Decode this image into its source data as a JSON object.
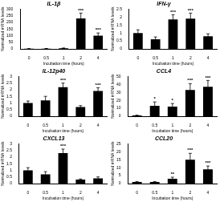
{
  "chart_data": [
    {
      "type": "bar",
      "title": "IL-1β",
      "x_label": "Incubation time (hours)",
      "y_label": "Normalized mRNA levels",
      "categories": [
        "0",
        "0.5",
        "1",
        "2",
        "4"
      ],
      "values": [
        1,
        2,
        5,
        230,
        100
      ],
      "errors": [
        0.5,
        1,
        2,
        40,
        20
      ],
      "significance": [
        null,
        null,
        null,
        "***",
        "***"
      ],
      "color": "#000000",
      "ylim": [
        0,
        300
      ],
      "yticks": [
        0,
        50,
        100,
        150,
        200,
        250,
        300
      ],
      "grid": false
    },
    {
      "type": "bar",
      "title": "IFN-γ",
      "x_label": "Incubation time (hours)",
      "y_label": "Normalized mRNA levels",
      "categories": [
        "0",
        "0.5",
        "1",
        "2",
        "4"
      ],
      "values": [
        1,
        0.6,
        1.85,
        1.9,
        0.8
      ],
      "errors": [
        0.2,
        0.15,
        0.3,
        0.35,
        0.15
      ],
      "significance": [
        null,
        null,
        "***",
        "***",
        null
      ],
      "color": "#000000",
      "ylim": [
        0,
        2.5
      ],
      "yticks": [
        0,
        0.5,
        1,
        1.5,
        2,
        2.5
      ],
      "grid": false
    },
    {
      "type": "bar",
      "title": "IL-12p40",
      "x_label": "Incubation time (hours)",
      "y_label": "Normalized mRNA levels",
      "categories": [
        "0",
        "0.5",
        "1",
        "2",
        "4"
      ],
      "values": [
        1,
        1.2,
        2.2,
        0.7,
        1.9
      ],
      "errors": [
        0.15,
        0.3,
        0.3,
        0.1,
        0.25
      ],
      "significance": [
        null,
        null,
        "***",
        null,
        "***"
      ],
      "color": "#000000",
      "ylim": [
        0,
        3
      ],
      "yticks": [
        0,
        0.5,
        1,
        1.5,
        2,
        2.5,
        3
      ],
      "grid": false
    },
    {
      "type": "bar",
      "title": "CCL4",
      "x_label": "Incubation time (hours)",
      "y_label": "Normalized mRNA levels",
      "categories": [
        "0",
        "0.5",
        "1",
        "2",
        "4"
      ],
      "values": [
        1,
        13,
        12,
        33,
        37
      ],
      "errors": [
        0.3,
        5,
        4,
        8,
        8
      ],
      "significance": [
        null,
        "*",
        "*",
        "***",
        "***"
      ],
      "color": "#000000",
      "ylim": [
        0,
        50
      ],
      "yticks": [
        0,
        10,
        20,
        30,
        40,
        50
      ],
      "grid": false
    },
    {
      "type": "bar",
      "title": "CXCL13",
      "x_label": "Incubation time (hours)",
      "y_label": "Normalized mRNA levels",
      "categories": [
        "0",
        "0.5",
        "1",
        "2",
        "4"
      ],
      "values": [
        1,
        0.7,
        2.3,
        0.3,
        0.4
      ],
      "errors": [
        0.2,
        0.2,
        0.3,
        0.05,
        0.1
      ],
      "significance": [
        null,
        null,
        "***",
        null,
        null
      ],
      "color": "#000000",
      "ylim": [
        0,
        3
      ],
      "yticks": [
        0,
        0.5,
        1,
        1.5,
        2,
        2.5,
        3
      ],
      "grid": false
    },
    {
      "type": "bar",
      "title": "CCL20",
      "x_label": "Incubation time (hours)",
      "y_label": "Normalized mRNA levels",
      "categories": [
        "0",
        "0.5",
        "1",
        "2",
        "4"
      ],
      "values": [
        1,
        1,
        3,
        15,
        9
      ],
      "errors": [
        0.2,
        0.3,
        1,
        4,
        2
      ],
      "significance": [
        null,
        null,
        "**",
        "***",
        "***"
      ],
      "color": "#000000",
      "ylim": [
        0,
        25
      ],
      "yticks": [
        0,
        5,
        10,
        15,
        20,
        25
      ],
      "grid": false
    }
  ]
}
